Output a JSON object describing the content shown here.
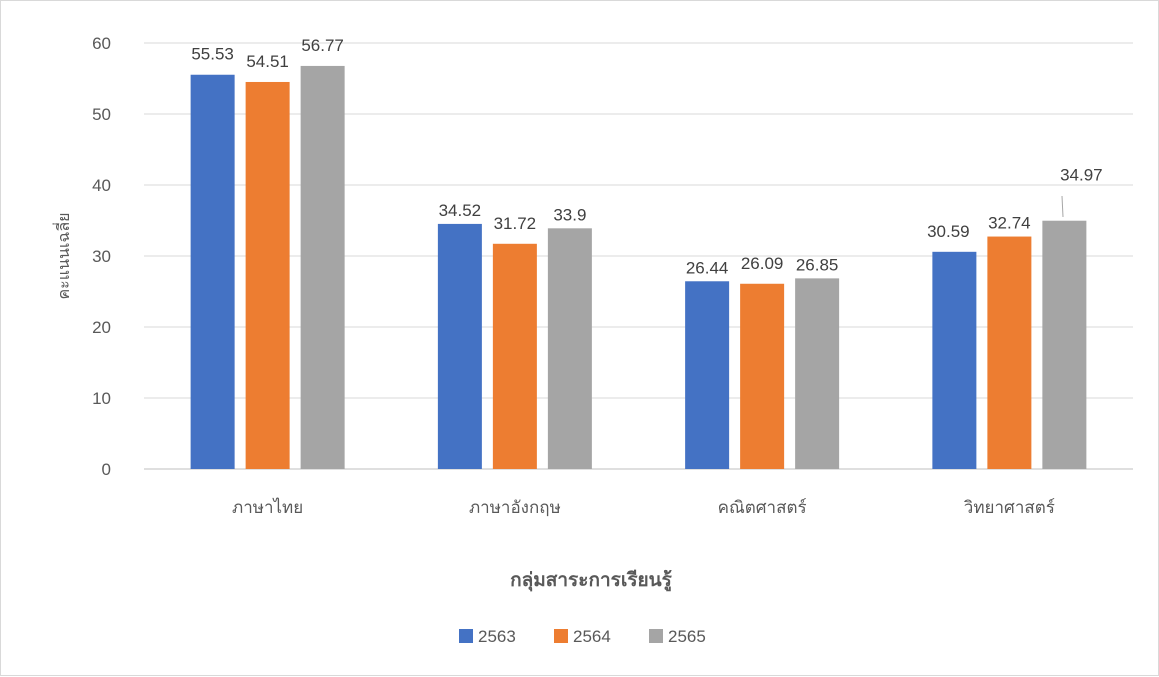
{
  "chart_data": {
    "type": "bar",
    "title": "",
    "xlabel": "กลุ่มสาระการเรียนรู้",
    "ylabel": "คะแนนเฉลี่ย",
    "categories": [
      "ภาษาไทย",
      "ภาษาอังกฤษ",
      "คณิตศาสตร์",
      "วิทยาศาสตร์"
    ],
    "series": [
      {
        "name": "2563",
        "color": "#4472c4",
        "values": [
          55.53,
          34.52,
          26.44,
          30.59
        ]
      },
      {
        "name": "2564",
        "color": "#ed7d31",
        "values": [
          54.51,
          31.72,
          26.09,
          32.74
        ]
      },
      {
        "name": "2565",
        "color": "#a5a5a5",
        "values": [
          56.77,
          33.9,
          26.85,
          34.97
        ]
      }
    ],
    "ylim": [
      0,
      60
    ],
    "yticks": [
      0,
      10,
      20,
      30,
      40,
      50,
      60
    ],
    "grid": true,
    "legend_position": "bottom",
    "data_labels": true
  }
}
